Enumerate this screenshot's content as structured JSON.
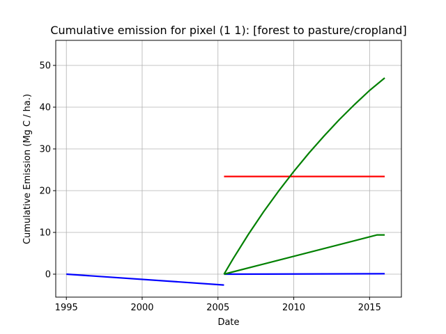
{
  "chart_data": {
    "type": "line",
    "title": "Cumulative emission for pixel (1 1): [forest to pasture/cropland]",
    "xlabel": "Date",
    "ylabel": "Cumulative Emission (Mg C / ha.)",
    "xlim": [
      1994.3,
      2017.1
    ],
    "ylim": [
      -5.5,
      56.0
    ],
    "x_ticks": [
      1995,
      2000,
      2005,
      2010,
      2015
    ],
    "y_ticks": [
      0,
      10,
      20,
      30,
      40,
      50
    ],
    "grid": true,
    "legend": "none",
    "series": [
      {
        "color": "#0000ff",
        "points": [
          [
            1995.0,
            0.0
          ],
          [
            2005.4,
            -2.6
          ]
        ]
      },
      {
        "color": "#0000ff",
        "points": [
          [
            2005.4,
            0.0
          ],
          [
            2016.0,
            0.1
          ]
        ]
      },
      {
        "color": "#ff0000",
        "points": [
          [
            2005.4,
            23.4
          ],
          [
            2016.0,
            23.4
          ]
        ]
      },
      {
        "color": "#008000",
        "points": [
          [
            2005.4,
            0.0
          ],
          [
            2006.0,
            3.7
          ],
          [
            2007.0,
            9.5
          ],
          [
            2008.0,
            14.9
          ],
          [
            2009.0,
            19.9
          ],
          [
            2010.0,
            24.6
          ],
          [
            2011.0,
            29.0
          ],
          [
            2012.0,
            33.1
          ],
          [
            2013.0,
            37.0
          ],
          [
            2014.0,
            40.6
          ],
          [
            2015.0,
            44.0
          ],
          [
            2016.0,
            47.0
          ]
        ]
      },
      {
        "color": "#008000",
        "points": [
          [
            2005.4,
            0.0
          ],
          [
            2015.5,
            9.4
          ],
          [
            2016.0,
            9.4
          ]
        ]
      }
    ]
  }
}
